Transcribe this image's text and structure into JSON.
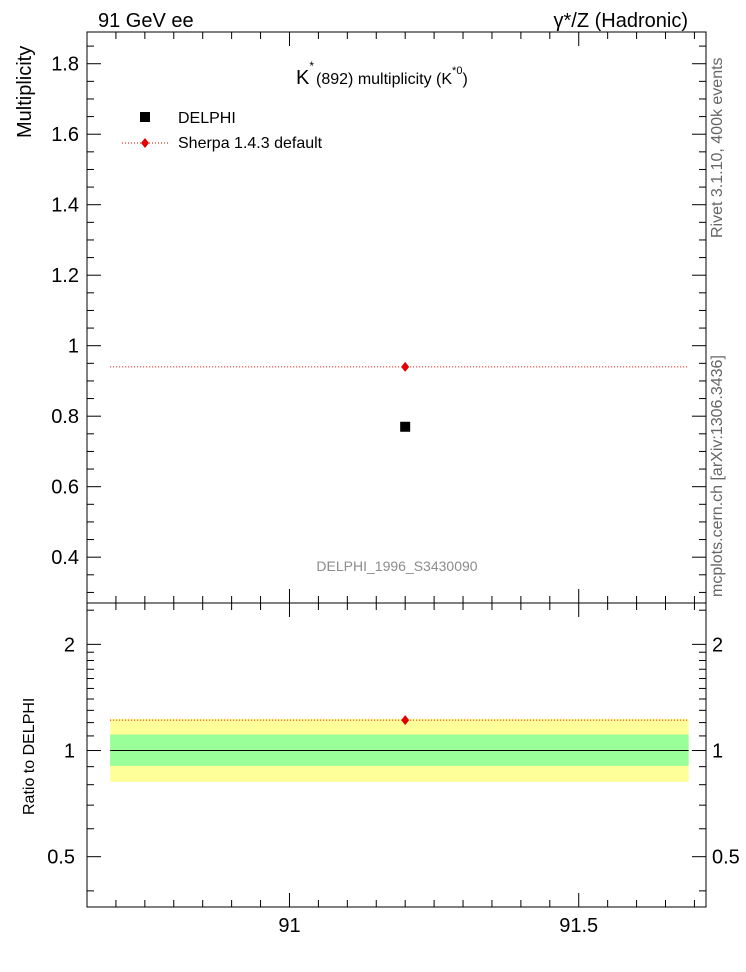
{
  "header": {
    "left": "91 GeV ee",
    "right": "γ*/Z (Hadronic)"
  },
  "side_labels": {
    "rivet": "Rivet 3.1.10,  400k events",
    "mcplots": "mcplots.cern.ch [arXiv:1306.3436]"
  },
  "plot_title": {
    "main": "K",
    "star": "*",
    "rest": "(892) multiplicity (K",
    "sup": "*0",
    "close": ")"
  },
  "watermark": "DELPHI_1996_S3430090",
  "colors": {
    "data": "#000000",
    "mc": "#e00000",
    "band_inner": "#99ff99",
    "band_outer": "#ffff99"
  },
  "chart_data": [
    {
      "type": "scatter",
      "ylabel": "Multiplicity",
      "xlim": [
        90.65,
        91.72
      ],
      "ylim": [
        0.27,
        1.89
      ],
      "x_ticks": [
        91,
        91.5
      ],
      "y_ticks": [
        0.4,
        0.6,
        0.8,
        1,
        1.2,
        1.4,
        1.6,
        1.8
      ],
      "legend_position": "top-left",
      "series": [
        {
          "name": "DELPHI",
          "marker": "square",
          "x": [
            91.2
          ],
          "y": [
            0.77
          ]
        },
        {
          "name": "Sherpa 1.4.3 default",
          "marker": "diamond",
          "line": "dotted",
          "x": [
            91.2
          ],
          "y": [
            0.94
          ]
        }
      ]
    },
    {
      "type": "scatter",
      "ylabel": "Ratio to DELPHI",
      "log_y": true,
      "xlim": [
        90.65,
        91.72
      ],
      "ylim": [
        0.36,
        2.62
      ],
      "y_ticks": [
        0.5,
        1,
        2
      ],
      "reference": 1,
      "bands": [
        {
          "kind": "outer",
          "low": 0.815,
          "high": 1.23
        },
        {
          "kind": "inner",
          "low": 0.905,
          "high": 1.11
        }
      ],
      "series": [
        {
          "name": "Sherpa 1.4.3 default",
          "marker": "diamond",
          "line": "dotted",
          "x": [
            91.2
          ],
          "y": [
            1.22
          ]
        }
      ]
    }
  ]
}
